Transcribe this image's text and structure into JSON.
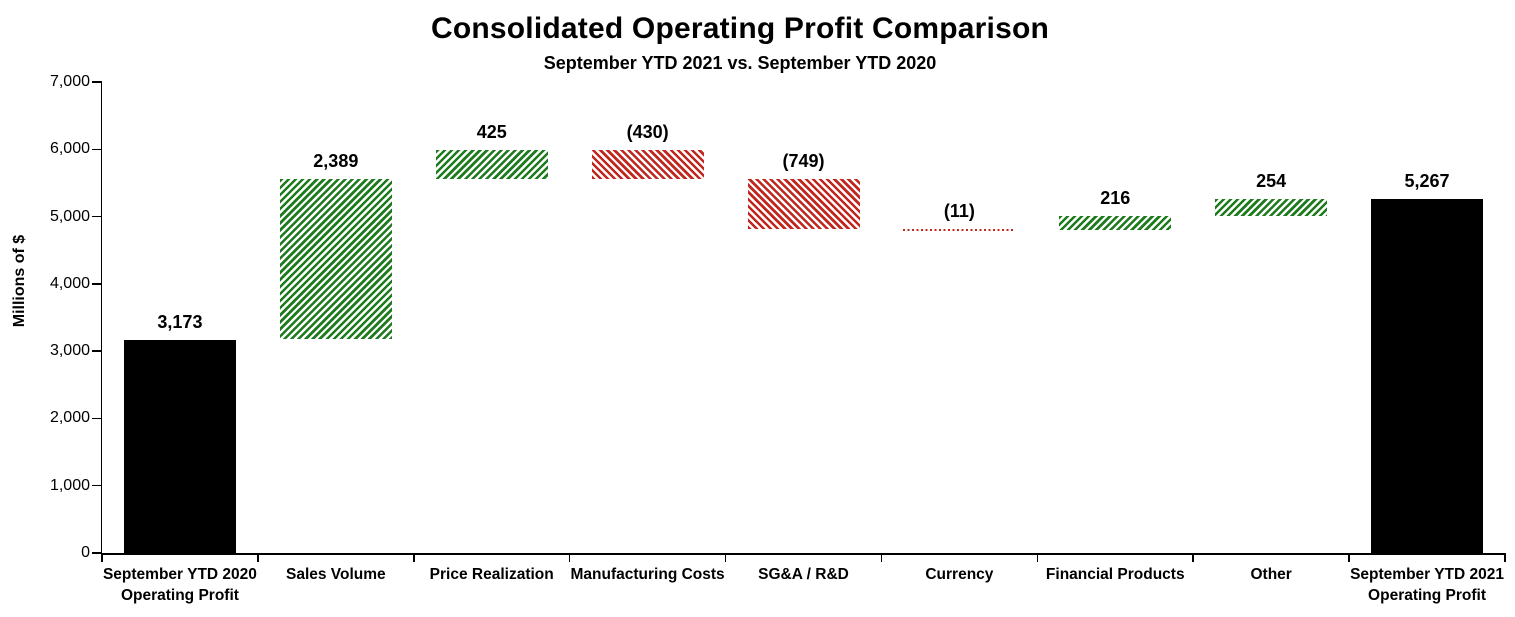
{
  "chart_data": {
    "type": "bar",
    "subtype": "waterfall",
    "title": "Consolidated Operating Profit Comparison",
    "subtitle": "September YTD 2021 vs. September YTD 2020",
    "ylabel": "Millions of $",
    "xlabel": "",
    "ylim": [
      0,
      7000
    ],
    "ytick_labels": [
      "0",
      "1,000",
      "2,000",
      "3,000",
      "4,000",
      "5,000",
      "6,000",
      "7,000"
    ],
    "grid": false,
    "legend": "none",
    "colors": {
      "total": "#000000",
      "increase": "#1E7B1E",
      "decrease": "#C0271E",
      "axis": "#000000",
      "background": "#FFFFFF"
    },
    "bars": [
      {
        "category_lines": [
          "September YTD 2020",
          "Operating Profit"
        ],
        "label": "3,173",
        "value": 3173,
        "start": 0,
        "end": 3173,
        "kind": "total"
      },
      {
        "category_lines": [
          "Sales Volume"
        ],
        "label": "2,389",
        "value": 2389,
        "start": 3173,
        "end": 5562,
        "kind": "increase"
      },
      {
        "category_lines": [
          "Price Realization"
        ],
        "label": "425",
        "value": 425,
        "start": 5562,
        "end": 5987,
        "kind": "increase"
      },
      {
        "category_lines": [
          "Manufacturing Costs"
        ],
        "label": "(430)",
        "value": -430,
        "start": 5987,
        "end": 5557,
        "kind": "decrease"
      },
      {
        "category_lines": [
          "SG&A / R&D"
        ],
        "label": "(749)",
        "value": -749,
        "start": 5557,
        "end": 4808,
        "kind": "decrease"
      },
      {
        "category_lines": [
          "Currency"
        ],
        "label": "(11)",
        "value": -11,
        "start": 4808,
        "end": 4797,
        "kind": "decrease"
      },
      {
        "category_lines": [
          "Financial  Products"
        ],
        "label": "216",
        "value": 216,
        "start": 4797,
        "end": 5013,
        "kind": "increase"
      },
      {
        "category_lines": [
          "Other"
        ],
        "label": "254",
        "value": 254,
        "start": 5013,
        "end": 5267,
        "kind": "increase"
      },
      {
        "category_lines": [
          "September YTD 2021",
          "Operating Profit"
        ],
        "label": "5,267",
        "value": 5267,
        "start": 0,
        "end": 5267,
        "kind": "total"
      }
    ]
  }
}
